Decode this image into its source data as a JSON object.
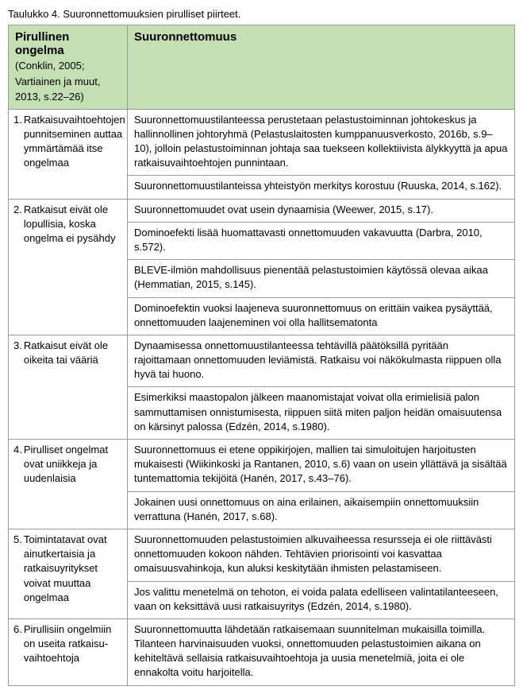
{
  "caption": "Taulukko 4. Suuronnettomuuksien pirulliset piirteet.",
  "header": {
    "left_title": "Pirullinen ongelma",
    "left_sub1": "(Conklin, 2005;",
    "left_sub2": "Vartiainen ja muut,",
    "left_sub3": "2013, s.22–26)",
    "right_title": "Suuronnettomuus"
  },
  "rows": [
    {
      "num": "1.",
      "left": "Ratkaisuvaihtoehtojen punnitseminen auttaa ymmärtämää itse ongelmaa",
      "cells": [
        "Suuronnettomuustilanteessa perustetaan pelastustoiminnan johtokeskus ja hallinnollinen johtoryhmä (Pelastuslaitosten kumppanuusverkosto, 2016b, s.9–10), jolloin pelastustoiminnan johtaja saa tuekseen kollektiivista älyk­kyyttä ja apua ratkaisuvaihtoehtojen punnintaan.",
        "Suuronnettomuustilanteissa yhteistyön merkitys korostuu (Ruuska, 2014, s.162)."
      ]
    },
    {
      "num": "2.",
      "left": "Ratkaisut eivät ole lopullisia, koska ongelma ei pysähdy",
      "cells": [
        "Suuronnettomuudet ovat usein dynaamisia (Weewer, 2015, s.17).",
        "Dominoefekti lisää huomattavasti onnettomuuden vakavuutta (Darbra, 2010, s.572).",
        "BLEVE-ilmiön mahdollisuus pienentää pelastustoimien käytössä olevaa aikaa (Hemmatian, 2015, s.145).",
        "Dominoefektin vuoksi laajeneva suuronnettomuus on erittäin vaikea pysäyttää, onnettomuuden laajeneminen voi olla hallitsematonta"
      ]
    },
    {
      "num": "3.",
      "left": "Ratkaisut eivät ole oikeita tai vääriä",
      "cells": [
        "Dynaamisessa onnettomuustilanteessa tehtävillä päätöksillä pyritään rajoittamaan onnettomuuden leviämistä. Ratkaisu voi näkökulmasta riippuen olla hyvä tai huono.",
        "Esimerkiksi maastopalon jälkeen maanomistajat voivat olla erimielisiä palon sammuttamisen onnistumisesta, riippuen siitä miten paljon heidän omaisuu­tensa on kärsinyt palossa (Edzén, 2014, s.1980)."
      ]
    },
    {
      "num": "4.",
      "left": "Pirulliset ongelmat ovat uniikkeja ja uudenlaisia",
      "cells": [
        "Suuronnettomuus ei etene oppikirjojen, mallien tai simuloitujen harjoitusten mukaisesti (Wiikinkoski ja Rantanen, 2010, s.6) vaan on usein yllättävä ja si­sältää tuntemattomia tekijöitä (Hanén, 2017, s.43–76).",
        "Jokainen uusi onnettomuus on aina erilainen, aikaisempiin onnettomuuksiin verrattuna (Hanén, 2017, s.68)."
      ]
    },
    {
      "num": "5.",
      "left": "Toimintatavat ovat ainutkertaisia ja ratkaisuyritykset voivat muuttaa ongelmaa",
      "cells": [
        "Suuronnettomuuden pelastustoimien alkuvaiheessa resursseja ei ole riittä­västi onnettomuuden kokoon nähden. Tehtävien priorisointi voi kasvattaa omaisuusvahinkoja, kun aluksi keskitytään ihmisten pelastamiseen.",
        "Jos valittu menetelmä on tehoton, ei voida palata edelliseen valintatilantee­seen, vaan on keksittävä uusi ratkaisuyritys (Edzén, 2014, s.1980)."
      ]
    },
    {
      "num": "6.",
      "left": "Pirullisiin ongelmiin on useita ratkaisu­vaihtoehtoja",
      "cells": [
        "Suuronnettomuutta lähdetään ratkaisemaan suunnitelman mukaisilla toimilla. Tilanteen harvinaisuuden vuoksi, onnettomuuden pelastustoimien aikana on kehiteltävä sellaisia ratkaisuvaihtoehtoja ja uusia menetelmiä, joita ei ole ennakolta voitu harjoitella."
      ]
    }
  ]
}
